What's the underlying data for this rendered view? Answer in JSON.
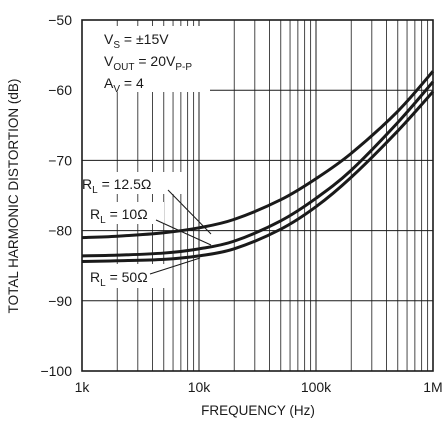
{
  "chart_data": {
    "type": "line",
    "xscale": "log",
    "xlim": [
      1000,
      1000000
    ],
    "ylim": [
      -100,
      -50
    ],
    "xlabel": "FREQUENCY (Hz)",
    "ylabel": "TOTAL HARMONIC DISTORTION (dB)",
    "x_ticks": [
      "1k",
      "10k",
      "100k",
      "1M"
    ],
    "y_ticks": [
      "−50",
      "−60",
      "−70",
      "−80",
      "−90",
      "−100"
    ],
    "grid": true,
    "conditions": {
      "vs": {
        "main": "V",
        "sub": "S",
        "rest": " = ±15V"
      },
      "vout": {
        "main": "V",
        "sub": "OUT",
        "rest": " = 20V",
        "sub2": "P-P"
      },
      "av": {
        "main": "A",
        "sub": "V",
        "rest": " = 4"
      }
    },
    "series": [
      {
        "name": "R_L = 12.5Ω",
        "label": {
          "main": "R",
          "sub": "L",
          "rest": " = 12.5Ω"
        },
        "x": [
          1000,
          2000,
          5000,
          10000,
          20000,
          50000,
          100000,
          200000,
          500000,
          1000000
        ],
        "values": [
          -81.0,
          -80.8,
          -80.3,
          -79.6,
          -78.4,
          -75.6,
          -72.6,
          -69.0,
          -63.0,
          -57.3
        ]
      },
      {
        "name": "R_L = 10Ω",
        "label": {
          "main": "R",
          "sub": "L",
          "rest": " = 10Ω"
        },
        "x": [
          1000,
          2000,
          5000,
          10000,
          20000,
          50000,
          100000,
          200000,
          500000,
          1000000
        ],
        "values": [
          -83.6,
          -83.5,
          -83.2,
          -82.6,
          -81.5,
          -78.6,
          -75.4,
          -71.4,
          -64.6,
          -58.8
        ]
      },
      {
        "name": "R_L = 50Ω",
        "label": {
          "main": "R",
          "sub": "L",
          "rest": " = 50Ω"
        },
        "x": [
          1000,
          2000,
          5000,
          10000,
          20000,
          50000,
          100000,
          200000,
          500000,
          1000000
        ],
        "values": [
          -84.4,
          -84.3,
          -84.1,
          -83.6,
          -82.6,
          -79.8,
          -76.6,
          -72.4,
          -65.8,
          -60.2
        ]
      }
    ]
  }
}
